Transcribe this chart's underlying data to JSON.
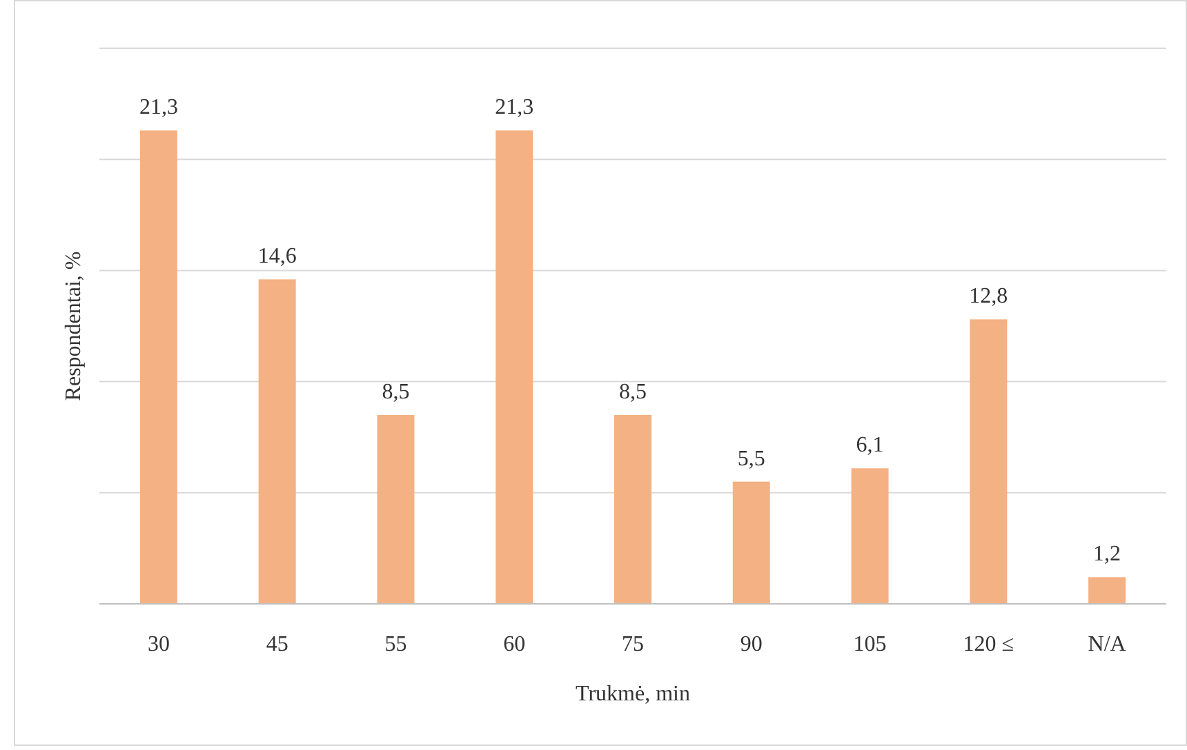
{
  "chart_data": {
    "type": "bar",
    "xlabel": "Trukmė, min",
    "ylabel": "Respondentai, %",
    "categories": [
      "30",
      "45",
      "55",
      "60",
      "75",
      "90",
      "105",
      "120 ≤",
      "N/A"
    ],
    "values": [
      21.3,
      14.6,
      8.5,
      21.3,
      8.5,
      5.5,
      6.1,
      12.8,
      1.2
    ],
    "value_labels": [
      "21,3",
      "14,6",
      "8,5",
      "21,3",
      "8,5",
      "5,5",
      "6,1",
      "12,8",
      "1,2"
    ],
    "color": "#f4b183",
    "ylim": [
      0,
      25
    ],
    "yticks": [
      {
        "value": 0,
        "label": null
      },
      {
        "value": 5,
        "label": null
      },
      {
        "value": 10,
        "label": null
      },
      {
        "value": 15,
        "label": null
      },
      {
        "value": 20,
        "label": null
      },
      {
        "value": 25,
        "label": null
      }
    ],
    "tick_labels": "x",
    "grid": "y"
  }
}
